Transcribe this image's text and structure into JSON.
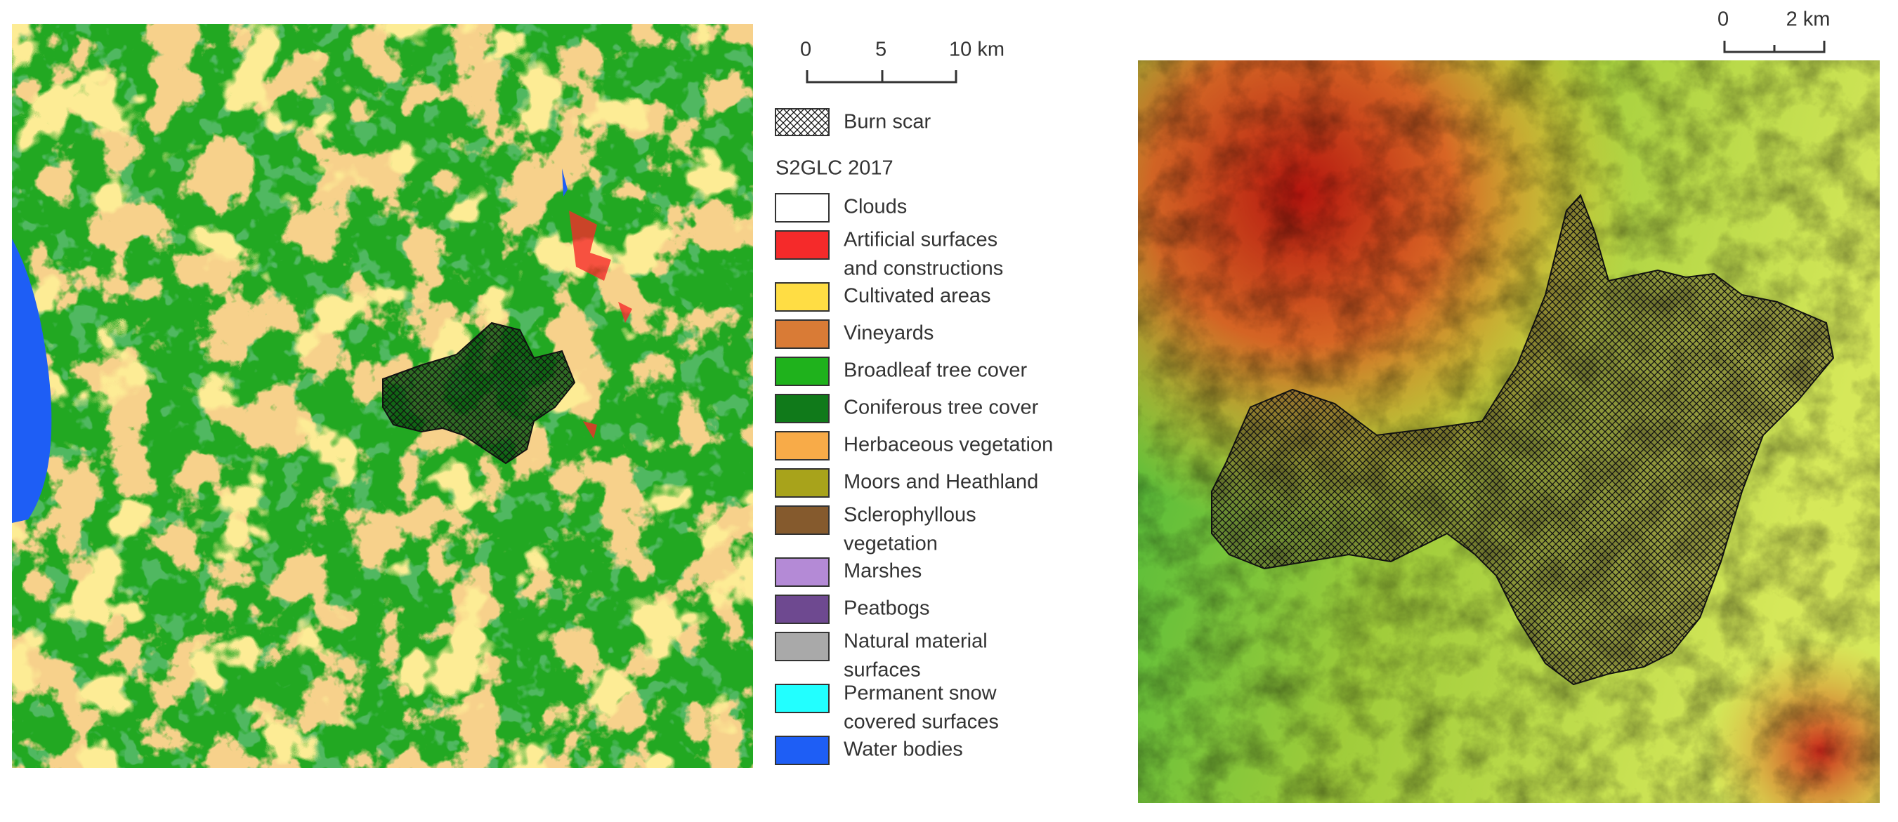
{
  "left_map": {
    "scale_bar": [
      "0",
      "5",
      "10 km"
    ]
  },
  "legend": {
    "burn_scar": "Burn scar",
    "title": "S2GLC 2017",
    "items": [
      {
        "label": [
          "Clouds"
        ],
        "color": "#ffffff"
      },
      {
        "label": [
          "Artificial surfaces",
          "and constructions"
        ],
        "color": "#f52a2a"
      },
      {
        "label": [
          "Cultivated areas"
        ],
        "color": "#ffdd44"
      },
      {
        "label": [
          "Vineyards"
        ],
        "color": "#d97b36"
      },
      {
        "label": [
          "Broadleaf tree cover"
        ],
        "color": "#1fb21c"
      },
      {
        "label": [
          "Coniferous tree cover"
        ],
        "color": "#107a1a"
      },
      {
        "label": [
          "Herbaceous vegetation"
        ],
        "color": "#f8ab48"
      },
      {
        "label": [
          "Moors and Heathland"
        ],
        "color": "#a8a31b"
      },
      {
        "label": [
          "Sclerophyllous",
          "vegetation"
        ],
        "color": "#855a2d"
      },
      {
        "label": [
          "Marshes"
        ],
        "color": "#b48ad6"
      },
      {
        "label": [
          "Peatbogs"
        ],
        "color": "#6e4990"
      },
      {
        "label": [
          "Natural material",
          "surfaces"
        ],
        "color": "#a9a9a9"
      },
      {
        "label": [
          "Permanent snow",
          "covered surfaces"
        ],
        "color": "#22ffff"
      },
      {
        "label": [
          "Water bodies"
        ],
        "color": "#1e5ef5"
      }
    ]
  },
  "right_map": {
    "scale_bar": [
      "0",
      "2 km"
    ]
  }
}
